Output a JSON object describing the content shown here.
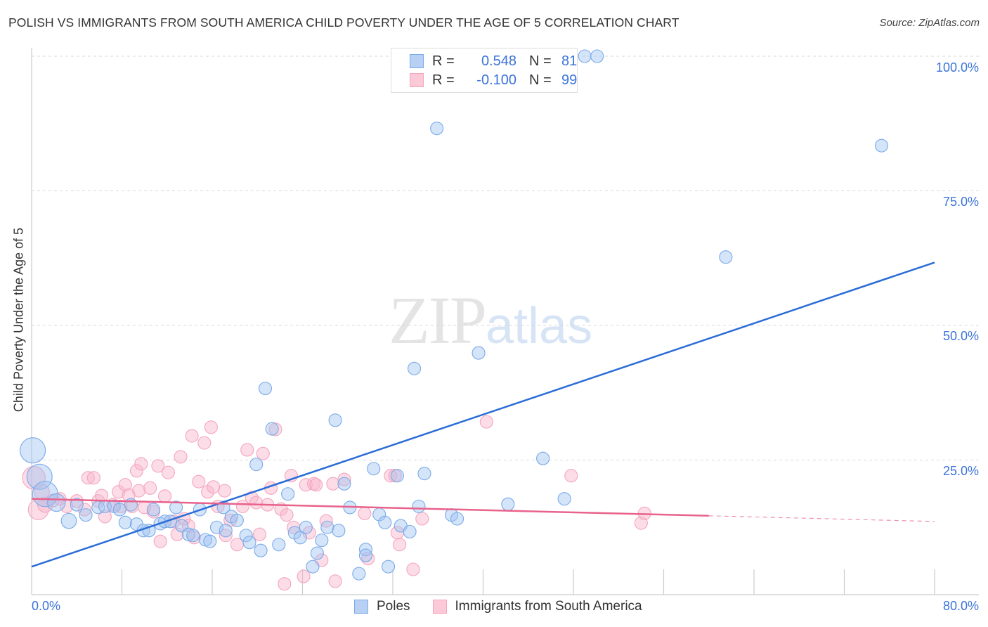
{
  "title": "POLISH VS IMMIGRANTS FROM SOUTH AMERICA CHILD POVERTY UNDER THE AGE OF 5 CORRELATION CHART",
  "source": "Source: ZipAtlas.com",
  "watermark": {
    "zip": "ZIP",
    "atlas": "atlas"
  },
  "legend": {
    "rows": [
      {
        "r_label": "R =",
        "r_value": "0.548",
        "n_label": "N =",
        "n_value": "81"
      },
      {
        "r_label": "R =",
        "r_value": "-0.100",
        "n_label": "N =",
        "n_value": "99"
      }
    ]
  },
  "chart_data": {
    "type": "scatter",
    "title": "POLISH VS IMMIGRANTS FROM SOUTH AMERICA CHILD POVERTY UNDER THE AGE OF 5 CORRELATION CHART",
    "xlabel": "",
    "ylabel": "Child Poverty Under the Age of 5",
    "xlim": [
      0,
      80
    ],
    "ylim": [
      0,
      100
    ],
    "x_tick_labels": [
      "0.0%",
      "80.0%"
    ],
    "y_ticks": [
      25,
      50,
      75,
      100
    ],
    "y_tick_labels": [
      "25.0%",
      "50.0%",
      "75.0%",
      "100.0%"
    ],
    "grid": "horizontal dashed",
    "legend_placement": "top-center and bottom",
    "series": [
      {
        "name": "Poles",
        "color": "#7aaae8",
        "line_color": "#2a6dd6",
        "trend": {
          "x0": 0,
          "y0": 5.2,
          "x1": 80,
          "y1": 61.7,
          "solid_to": 80
        },
        "points": [
          [
            0.1,
            26.8,
            2
          ],
          [
            0.7,
            21.9,
            2
          ],
          [
            1.2,
            18.7,
            2
          ],
          [
            2.2,
            17.1,
            1.4
          ],
          [
            3.3,
            13.7,
            1.2
          ],
          [
            4.0,
            16.7,
            1
          ],
          [
            4.8,
            14.8,
            1
          ],
          [
            5.9,
            16.2,
            1
          ],
          [
            6.5,
            16.4,
            1
          ],
          [
            7.3,
            16.4,
            1
          ],
          [
            7.8,
            15.8,
            1
          ],
          [
            8.3,
            13.4,
            1
          ],
          [
            8.8,
            16.7,
            1
          ],
          [
            9.3,
            13.1,
            1
          ],
          [
            9.9,
            11.9,
            1
          ],
          [
            10.4,
            11.9,
            1
          ],
          [
            10.8,
            15.8,
            1
          ],
          [
            11.4,
            13.2,
            1
          ],
          [
            11.8,
            13.6,
            1
          ],
          [
            12.3,
            13.6,
            1
          ],
          [
            12.8,
            16.2,
            1
          ],
          [
            13.3,
            12.8,
            1
          ],
          [
            13.9,
            11.2,
            1
          ],
          [
            14.3,
            11.0,
            1
          ],
          [
            14.9,
            15.8,
            1
          ],
          [
            15.4,
            10.2,
            1
          ],
          [
            15.8,
            9.9,
            1
          ],
          [
            16.4,
            12.5,
            1
          ],
          [
            17.0,
            16.2,
            1
          ],
          [
            17.2,
            11.9,
            1
          ],
          [
            17.7,
            14.5,
            1
          ],
          [
            18.2,
            13.8,
            1
          ],
          [
            19.0,
            11.0,
            1
          ],
          [
            19.3,
            9.7,
            1
          ],
          [
            19.9,
            24.2,
            1
          ],
          [
            20.3,
            8.2,
            1
          ],
          [
            20.7,
            38.3,
            1
          ],
          [
            21.3,
            30.8,
            1
          ],
          [
            21.9,
            9.3,
            1
          ],
          [
            22.7,
            18.7,
            1
          ],
          [
            23.3,
            11.5,
            1
          ],
          [
            23.8,
            10.6,
            1
          ],
          [
            24.3,
            12.5,
            1
          ],
          [
            24.9,
            5.2,
            1
          ],
          [
            25.3,
            7.7,
            1
          ],
          [
            25.7,
            10.1,
            1
          ],
          [
            26.2,
            12.5,
            1
          ],
          [
            26.9,
            32.4,
            1
          ],
          [
            27.2,
            11.9,
            1
          ],
          [
            27.7,
            20.6,
            1
          ],
          [
            28.2,
            16.2,
            1
          ],
          [
            29.0,
            3.9,
            1
          ],
          [
            29.6,
            8.4,
            1
          ],
          [
            29.6,
            7.3,
            1
          ],
          [
            30.3,
            23.4,
            1
          ],
          [
            30.8,
            14.9,
            1
          ],
          [
            31.3,
            13.4,
            1
          ],
          [
            31.6,
            5.2,
            1
          ],
          [
            32.4,
            22.1,
            1
          ],
          [
            32.7,
            12.8,
            1
          ],
          [
            33.5,
            11.7,
            1
          ],
          [
            33.9,
            42.0,
            1
          ],
          [
            34.3,
            16.4,
            1
          ],
          [
            34.8,
            22.5,
            1
          ],
          [
            35.9,
            86.6,
            1
          ],
          [
            37.2,
            14.8,
            1
          ],
          [
            37.7,
            14.1,
            1
          ],
          [
            39.6,
            44.9,
            1
          ],
          [
            42.2,
            16.8,
            1
          ],
          [
            45.3,
            25.3,
            1
          ],
          [
            47.2,
            17.8,
            1
          ],
          [
            49.0,
            100,
            1
          ],
          [
            50.1,
            100,
            1
          ],
          [
            61.5,
            62.7,
            1
          ],
          [
            75.3,
            83.4,
            1
          ]
        ]
      },
      {
        "name": "Immigrants from South America",
        "color": "#f4a5bd",
        "line_color": "#e8628c",
        "trend": {
          "x0": 0,
          "y0": 17.8,
          "x1": 80,
          "y1": 13.6,
          "solid_to": 60
        },
        "points": [
          [
            0.2,
            21.7,
            1.8
          ],
          [
            0.6,
            15.8,
            1.6
          ],
          [
            0.9,
            19.1,
            1.2
          ],
          [
            1.2,
            16.7,
            1.2
          ],
          [
            1.9,
            17.5,
            1
          ],
          [
            2.5,
            17.8,
            1
          ],
          [
            3.1,
            16.4,
            1
          ],
          [
            4.0,
            17.4,
            1
          ],
          [
            4.7,
            15.8,
            1
          ],
          [
            5.0,
            21.7,
            1
          ],
          [
            5.5,
            21.7,
            1
          ],
          [
            5.9,
            17.4,
            1
          ],
          [
            6.2,
            18.4,
            1
          ],
          [
            6.5,
            14.5,
            1
          ],
          [
            7.2,
            16.7,
            1
          ],
          [
            7.7,
            19.1,
            1
          ],
          [
            7.9,
            16.4,
            1
          ],
          [
            8.3,
            20.4,
            1
          ],
          [
            8.6,
            18.5,
            1
          ],
          [
            8.9,
            16.4,
            1
          ],
          [
            9.3,
            23.0,
            1
          ],
          [
            9.5,
            19.3,
            1
          ],
          [
            9.7,
            24.3,
            1
          ],
          [
            10.0,
            16.2,
            1
          ],
          [
            10.5,
            19.8,
            1
          ],
          [
            10.8,
            15.4,
            1
          ],
          [
            11.2,
            23.9,
            1
          ],
          [
            11.4,
            9.9,
            1
          ],
          [
            11.8,
            18.3,
            1
          ],
          [
            12.1,
            22.7,
            1
          ],
          [
            12.6,
            13.6,
            1
          ],
          [
            12.9,
            11.2,
            1
          ],
          [
            13.2,
            25.6,
            1
          ],
          [
            13.5,
            14.1,
            1
          ],
          [
            13.9,
            12.8,
            1
          ],
          [
            14.2,
            29.5,
            1
          ],
          [
            14.4,
            10.6,
            1
          ],
          [
            14.8,
            21.0,
            1
          ],
          [
            15.3,
            28.2,
            1
          ],
          [
            15.6,
            19.1,
            1
          ],
          [
            15.9,
            31.1,
            1
          ],
          [
            16.1,
            20.0,
            1
          ],
          [
            16.5,
            16.4,
            1
          ],
          [
            17.1,
            19.3,
            1
          ],
          [
            17.2,
            11.0,
            1
          ],
          [
            17.6,
            13.8,
            1
          ],
          [
            18.2,
            9.3,
            1
          ],
          [
            18.7,
            16.4,
            1
          ],
          [
            19.1,
            26.9,
            1
          ],
          [
            19.5,
            18.0,
            1
          ],
          [
            19.9,
            17.1,
            1
          ],
          [
            20.2,
            11.2,
            1
          ],
          [
            20.5,
            26.2,
            1
          ],
          [
            20.9,
            16.7,
            1
          ],
          [
            21.2,
            19.8,
            1
          ],
          [
            21.6,
            30.7,
            1
          ],
          [
            22.1,
            15.9,
            1
          ],
          [
            22.6,
            14.8,
            1
          ],
          [
            23.0,
            22.1,
            1
          ],
          [
            23.2,
            12.5,
            1
          ],
          [
            22.4,
            2.0,
            1
          ],
          [
            24.1,
            3.4,
            1
          ],
          [
            24.3,
            20.4,
            1
          ],
          [
            24.6,
            11.5,
            1
          ],
          [
            25.0,
            20.6,
            1
          ],
          [
            25.2,
            20.4,
            1
          ],
          [
            25.7,
            6.4,
            1
          ],
          [
            26.1,
            13.7,
            1
          ],
          [
            26.7,
            20.6,
            1
          ],
          [
            26.9,
            2.5,
            1
          ],
          [
            27.7,
            21.4,
            1
          ],
          [
            29.5,
            15.1,
            1
          ],
          [
            29.8,
            6.7,
            1
          ],
          [
            31.8,
            22.1,
            1
          ],
          [
            32.2,
            22.1,
            1
          ],
          [
            32.4,
            11.5,
            1
          ],
          [
            32.6,
            9.3,
            1
          ],
          [
            33.8,
            4.7,
            1
          ],
          [
            34.6,
            14.1,
            1
          ],
          [
            40.3,
            32.1,
            1
          ],
          [
            47.8,
            22.1,
            1
          ],
          [
            54.0,
            13.3,
            1
          ],
          [
            54.3,
            15.1,
            1
          ]
        ]
      }
    ]
  }
}
